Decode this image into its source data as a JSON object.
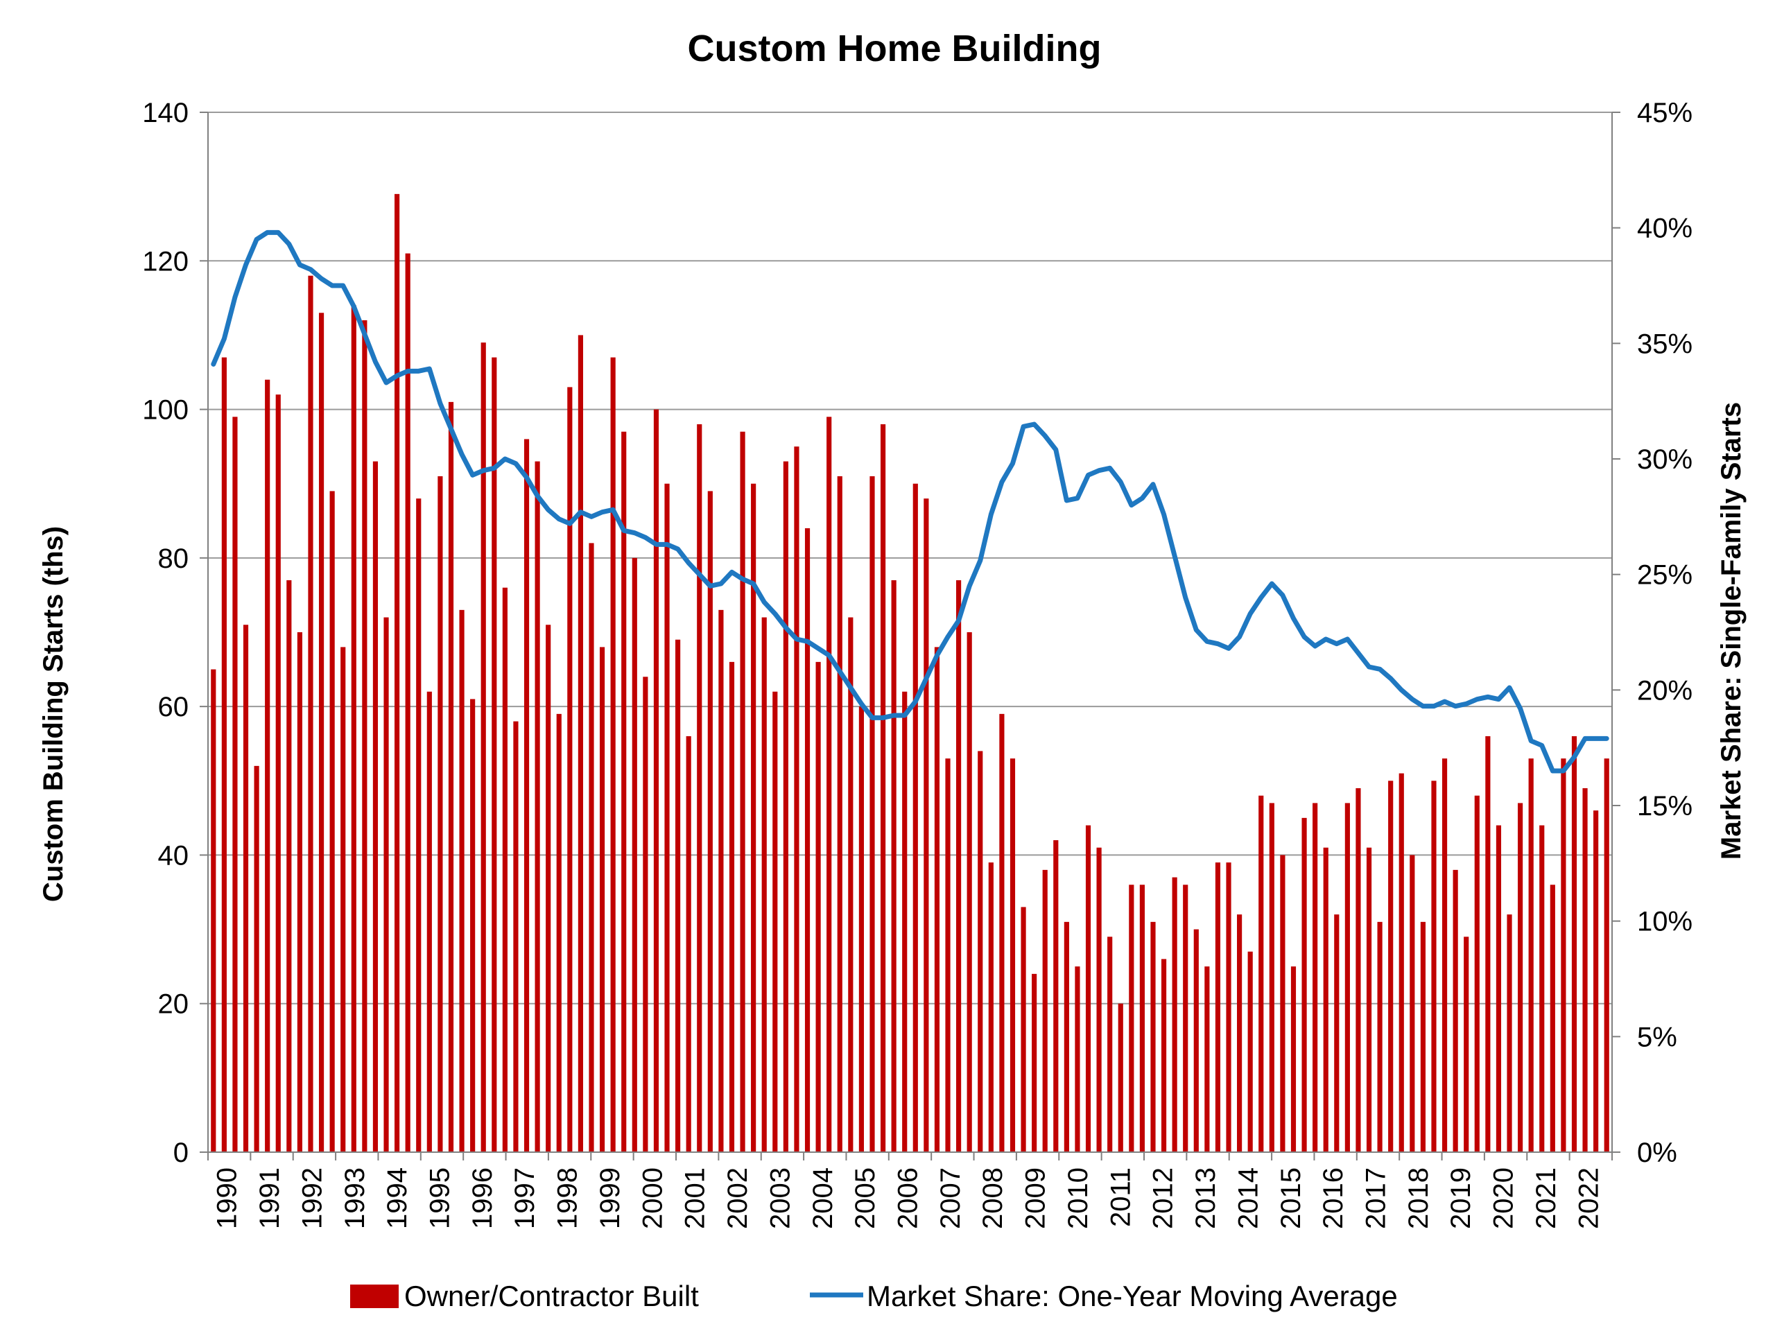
{
  "chart_data": {
    "type": "bar",
    "title": "Custom Home Building",
    "ylabel": "Custom Building Starts (ths)",
    "y2label": "Market Share: Single-Family Starts",
    "ylim": [
      0,
      140
    ],
    "y2lim": [
      0,
      45
    ],
    "yticks": [
      "0",
      "20",
      "40",
      "60",
      "80",
      "100",
      "120",
      "140"
    ],
    "y2ticks": [
      "0%",
      "5%",
      "10%",
      "15%",
      "20%",
      "25%",
      "30%",
      "35%",
      "40%",
      "45%"
    ],
    "xticks": [
      "1990",
      "1991",
      "1992",
      "1993",
      "1994",
      "1995",
      "1996",
      "1997",
      "1998",
      "1999",
      "2000",
      "2001",
      "2002",
      "2003",
      "2004",
      "2005",
      "2006",
      "2007",
      "2008",
      "2009",
      "2010",
      "2011",
      "2012",
      "2013",
      "2014",
      "2015",
      "2016",
      "2017",
      "2018",
      "2019",
      "2020",
      "2021",
      "2022"
    ],
    "grid": true,
    "legend_position": "bottom",
    "colors": {
      "bars": "#C00000",
      "line": "#1F78C1"
    },
    "series": [
      {
        "name": "Owner/Contractor Built",
        "type": "bar",
        "axis": "left",
        "values": [
          65,
          107,
          99,
          71,
          52,
          104,
          102,
          77,
          70,
          118,
          113,
          89,
          68,
          114,
          112,
          93,
          72,
          129,
          121,
          88,
          62,
          91,
          101,
          73,
          61,
          109,
          107,
          76,
          58,
          96,
          93,
          71,
          59,
          103,
          110,
          82,
          68,
          107,
          97,
          80,
          64,
          100,
          90,
          69,
          56,
          98,
          89,
          73,
          66,
          97,
          90,
          72,
          62,
          93,
          95,
          84,
          66,
          99,
          91,
          72,
          60,
          91,
          98,
          77,
          62,
          90,
          88,
          68,
          53,
          77,
          70,
          54,
          39,
          59,
          53,
          33,
          24,
          38,
          42,
          31,
          25,
          44,
          41,
          29,
          20,
          36,
          36,
          31,
          26,
          37,
          36,
          30,
          25,
          39,
          39,
          32,
          27,
          48,
          47,
          40,
          25,
          45,
          47,
          41,
          32,
          47,
          49,
          41,
          31,
          50,
          51,
          40,
          31,
          50,
          53,
          38,
          29,
          48,
          56,
          44,
          32,
          47,
          53,
          44,
          36,
          53,
          56,
          49,
          46,
          53
        ]
      },
      {
        "name": "Market Share: One-Year Moving Average",
        "type": "line",
        "axis": "right",
        "unit": "%",
        "values": [
          34.1,
          35.2,
          37.0,
          38.4,
          39.5,
          39.8,
          39.8,
          39.3,
          38.4,
          38.2,
          37.8,
          37.5,
          37.5,
          36.6,
          35.4,
          34.2,
          33.3,
          33.6,
          33.8,
          33.8,
          33.9,
          32.4,
          31.3,
          30.2,
          29.3,
          29.5,
          29.6,
          30.0,
          29.8,
          29.2,
          28.4,
          27.8,
          27.4,
          27.2,
          27.7,
          27.5,
          27.7,
          27.8,
          26.9,
          26.8,
          26.6,
          26.3,
          26.3,
          26.1,
          25.5,
          25.0,
          24.5,
          24.6,
          25.1,
          24.8,
          24.6,
          23.8,
          23.3,
          22.7,
          22.2,
          22.1,
          21.8,
          21.5,
          20.8,
          20.1,
          19.4,
          18.8,
          18.8,
          18.9,
          18.9,
          19.5,
          20.5,
          21.5,
          22.3,
          23.0,
          24.5,
          25.6,
          27.6,
          29.0,
          29.8,
          31.4,
          31.5,
          31.0,
          30.4,
          28.2,
          28.3,
          29.3,
          29.5,
          29.6,
          29.0,
          28.0,
          28.3,
          28.9,
          27.6,
          25.8,
          24.0,
          22.6,
          22.1,
          22.0,
          21.8,
          22.3,
          23.3,
          24.0,
          24.6,
          24.1,
          23.1,
          22.3,
          21.9,
          22.2,
          22.0,
          22.2,
          21.6,
          21.0,
          20.9,
          20.5,
          20.0,
          19.6,
          19.3,
          19.3,
          19.5,
          19.3,
          19.4,
          19.6,
          19.7,
          19.6,
          20.1,
          19.2,
          17.8,
          17.6,
          16.5,
          16.5,
          17.1,
          17.9,
          17.9,
          17.9
        ]
      }
    ]
  }
}
